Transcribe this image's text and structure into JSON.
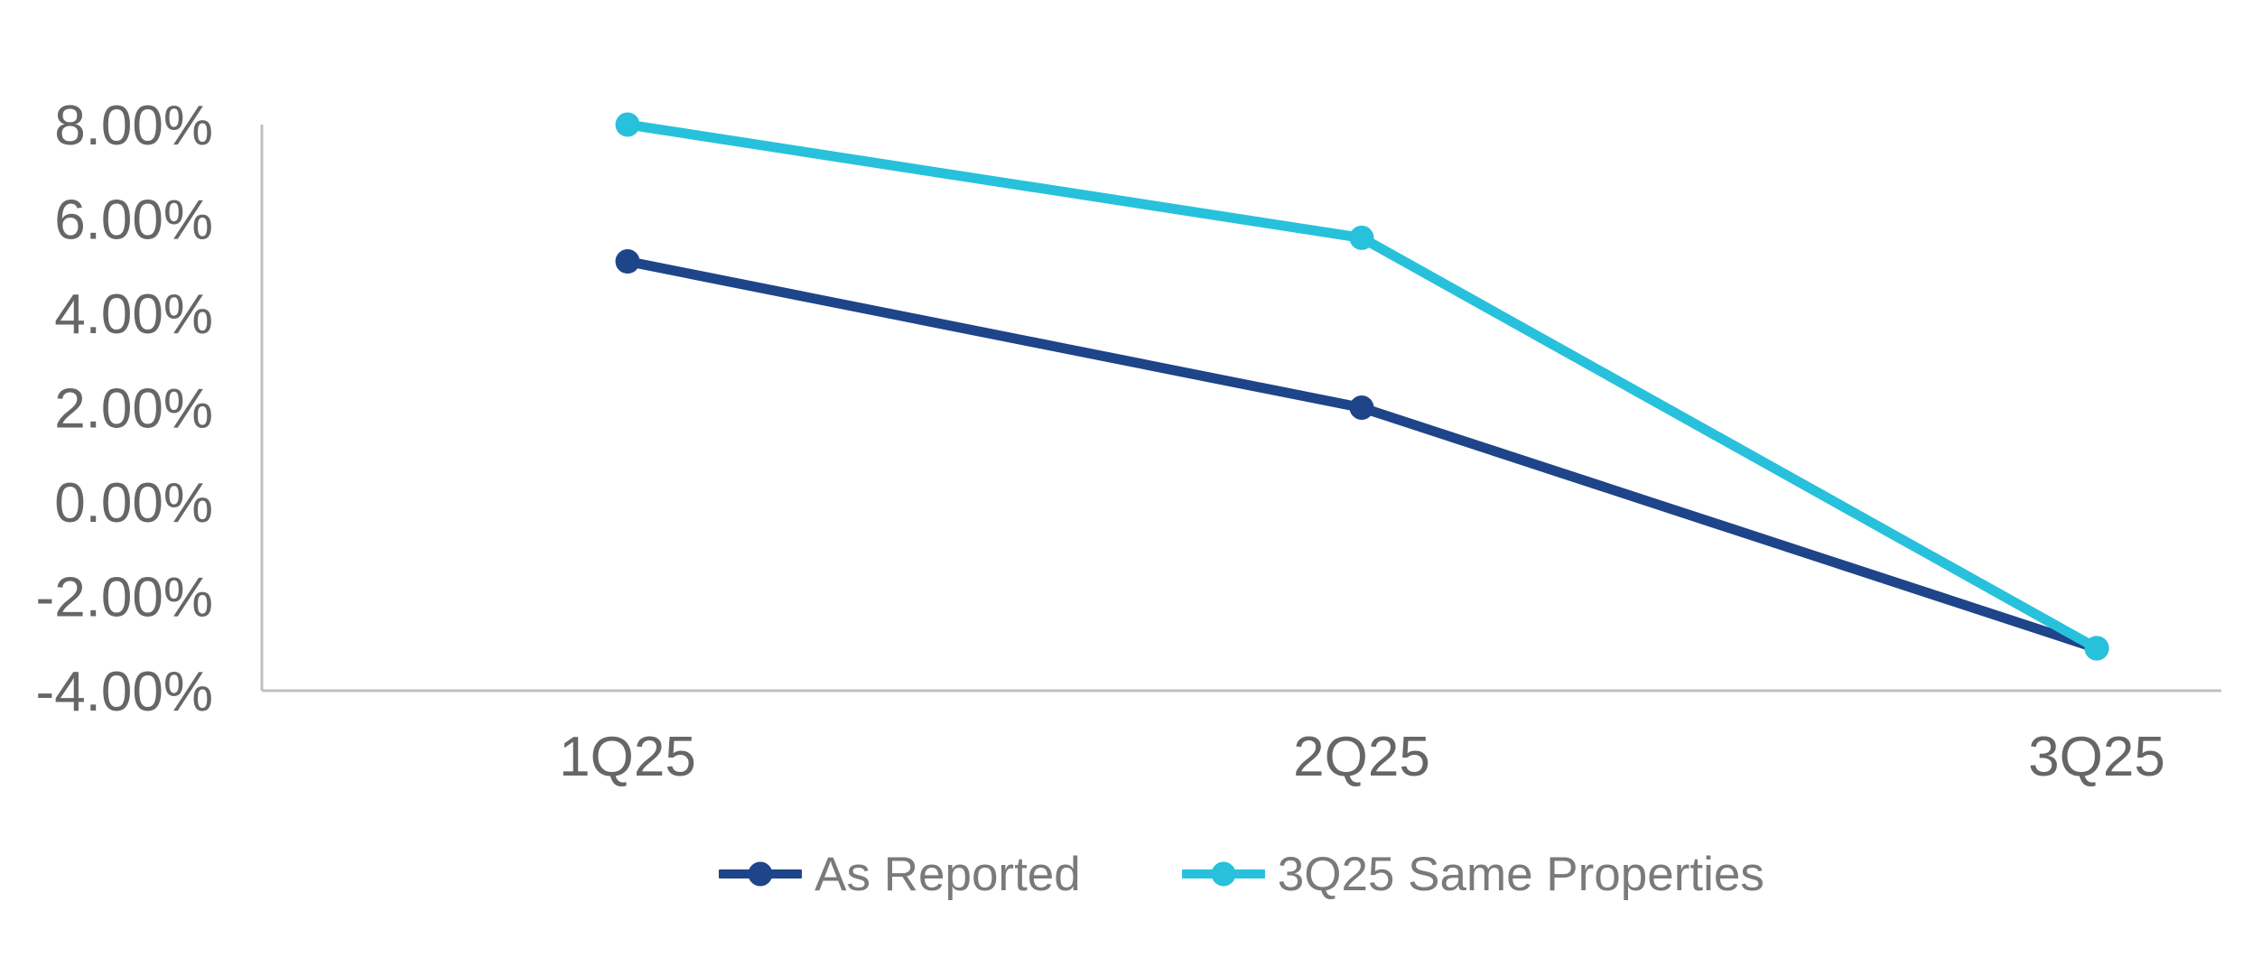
{
  "chart_data": {
    "type": "line",
    "title": "",
    "xlabel": "",
    "ylabel": "",
    "categories": [
      "1Q25",
      "2Q25",
      "3Q25"
    ],
    "series": [
      {
        "name": "As Reported",
        "values": [
          5.1,
          2.0,
          -3.1
        ],
        "color": "#1E4489"
      },
      {
        "name": "3Q25 Same Properties",
        "values": [
          8.0,
          5.6,
          -3.1
        ],
        "color": "#27C1DC"
      }
    ],
    "ylim": [
      -4,
      8
    ],
    "ytick_step": 2,
    "ytick_labels": [
      "8.00%",
      "6.00%",
      "4.00%",
      "2.00%",
      "0.00%",
      "-2.00%",
      "-4.00%"
    ],
    "grid": false,
    "legend_position": "bottom-center",
    "colors": {
      "axis_line": "#C0C0C0",
      "tick_label": "#666666",
      "legend_text": "#7A7A7A",
      "background": "#FFFFFF"
    }
  }
}
